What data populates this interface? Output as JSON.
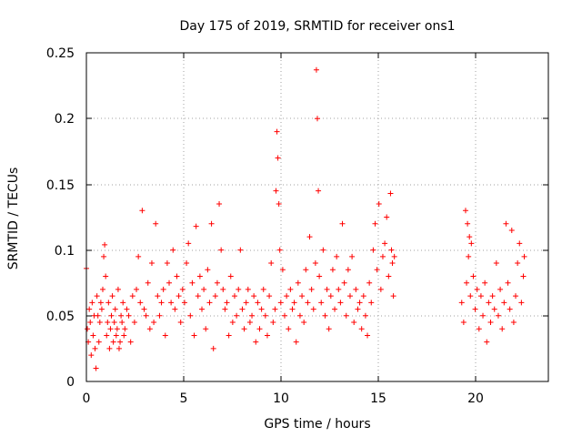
{
  "chart_data": {
    "type": "scatter",
    "title": "Day 175 of 2019, SRMTID for receiver ons1",
    "xlabel": "GPS time / hours",
    "ylabel": "SRMTID / TECUs",
    "xlim": [
      0,
      24
    ],
    "ylim": [
      0,
      0.25
    ],
    "xticks": [
      0,
      5,
      10,
      15,
      20
    ],
    "yticks": [
      0,
      0.05,
      0.1,
      0.15,
      0.2,
      0.25
    ],
    "ytick_labels": [
      "0",
      "0.05",
      "0.1",
      "0.15",
      "0.2",
      "0.25"
    ],
    "grid": true,
    "marker": "+",
    "marker_color": "#ff0000",
    "series": [
      {
        "name": "SRMTID",
        "color": "#ff0000",
        "points": [
          [
            0.0,
            0.086
          ],
          [
            0.05,
            0.04
          ],
          [
            0.1,
            0.03
          ],
          [
            0.15,
            0.055
          ],
          [
            0.2,
            0.045
          ],
          [
            0.25,
            0.02
          ],
          [
            0.3,
            0.06
          ],
          [
            0.35,
            0.035
          ],
          [
            0.4,
            0.05
          ],
          [
            0.45,
            0.025
          ],
          [
            0.5,
            0.01
          ],
          [
            0.55,
            0.065
          ],
          [
            0.6,
            0.05
          ],
          [
            0.65,
            0.03
          ],
          [
            0.7,
            0.045
          ],
          [
            0.75,
            0.06
          ],
          [
            0.8,
            0.055
          ],
          [
            0.85,
            0.07
          ],
          [
            0.9,
            0.095
          ],
          [
            0.95,
            0.104
          ],
          [
            1.0,
            0.08
          ],
          [
            1.05,
            0.035
          ],
          [
            1.1,
            0.045
          ],
          [
            1.15,
            0.06
          ],
          [
            1.2,
            0.025
          ],
          [
            1.25,
            0.04
          ],
          [
            1.3,
            0.05
          ],
          [
            1.35,
            0.065
          ],
          [
            1.4,
            0.03
          ],
          [
            1.45,
            0.045
          ],
          [
            1.5,
            0.055
          ],
          [
            1.55,
            0.035
          ],
          [
            1.6,
            0.04
          ],
          [
            1.65,
            0.07
          ],
          [
            1.7,
            0.025
          ],
          [
            1.75,
            0.03
          ],
          [
            1.8,
            0.05
          ],
          [
            1.85,
            0.045
          ],
          [
            1.9,
            0.06
          ],
          [
            1.95,
            0.035
          ],
          [
            2.0,
            0.04
          ],
          [
            2.1,
            0.055
          ],
          [
            2.2,
            0.05
          ],
          [
            2.3,
            0.03
          ],
          [
            2.4,
            0.065
          ],
          [
            2.5,
            0.045
          ],
          [
            2.6,
            0.07
          ],
          [
            2.7,
            0.095
          ],
          [
            2.8,
            0.06
          ],
          [
            2.9,
            0.13
          ],
          [
            3.0,
            0.055
          ],
          [
            3.1,
            0.05
          ],
          [
            3.2,
            0.075
          ],
          [
            3.3,
            0.04
          ],
          [
            3.4,
            0.09
          ],
          [
            3.5,
            0.045
          ],
          [
            3.6,
            0.12
          ],
          [
            3.7,
            0.065
          ],
          [
            3.8,
            0.05
          ],
          [
            3.9,
            0.06
          ],
          [
            4.0,
            0.07
          ],
          [
            4.1,
            0.035
          ],
          [
            4.2,
            0.09
          ],
          [
            4.3,
            0.075
          ],
          [
            4.4,
            0.06
          ],
          [
            4.5,
            0.1
          ],
          [
            4.6,
            0.055
          ],
          [
            4.7,
            0.08
          ],
          [
            4.8,
            0.065
          ],
          [
            4.9,
            0.045
          ],
          [
            5.0,
            0.07
          ],
          [
            5.1,
            0.06
          ],
          [
            5.2,
            0.09
          ],
          [
            5.3,
            0.105
          ],
          [
            5.4,
            0.05
          ],
          [
            5.5,
            0.075
          ],
          [
            5.6,
            0.035
          ],
          [
            5.7,
            0.118
          ],
          [
            5.8,
            0.065
          ],
          [
            5.9,
            0.08
          ],
          [
            6.0,
            0.055
          ],
          [
            6.1,
            0.07
          ],
          [
            6.2,
            0.04
          ],
          [
            6.3,
            0.085
          ],
          [
            6.4,
            0.06
          ],
          [
            6.5,
            0.12
          ],
          [
            6.6,
            0.025
          ],
          [
            6.7,
            0.065
          ],
          [
            6.8,
            0.075
          ],
          [
            6.9,
            0.135
          ],
          [
            7.0,
            0.1
          ],
          [
            7.1,
            0.07
          ],
          [
            7.2,
            0.055
          ],
          [
            7.3,
            0.06
          ],
          [
            7.4,
            0.035
          ],
          [
            7.5,
            0.08
          ],
          [
            7.6,
            0.045
          ],
          [
            7.7,
            0.065
          ],
          [
            7.8,
            0.05
          ],
          [
            7.9,
            0.07
          ],
          [
            8.0,
            0.1
          ],
          [
            8.1,
            0.055
          ],
          [
            8.2,
            0.04
          ],
          [
            8.3,
            0.06
          ],
          [
            8.4,
            0.07
          ],
          [
            8.5,
            0.045
          ],
          [
            8.6,
            0.05
          ],
          [
            8.7,
            0.065
          ],
          [
            8.8,
            0.03
          ],
          [
            8.9,
            0.06
          ],
          [
            9.0,
            0.04
          ],
          [
            9.1,
            0.055
          ],
          [
            9.2,
            0.07
          ],
          [
            9.3,
            0.05
          ],
          [
            9.4,
            0.035
          ],
          [
            9.5,
            0.065
          ],
          [
            9.6,
            0.09
          ],
          [
            9.7,
            0.045
          ],
          [
            9.8,
            0.055
          ],
          [
            9.85,
            0.145
          ],
          [
            9.9,
            0.19
          ],
          [
            9.95,
            0.17
          ],
          [
            10.0,
            0.135
          ],
          [
            10.05,
            0.1
          ],
          [
            10.1,
            0.06
          ],
          [
            10.2,
            0.085
          ],
          [
            10.3,
            0.05
          ],
          [
            10.4,
            0.065
          ],
          [
            10.5,
            0.04
          ],
          [
            10.6,
            0.07
          ],
          [
            10.7,
            0.055
          ],
          [
            10.8,
            0.06
          ],
          [
            10.9,
            0.03
          ],
          [
            11.0,
            0.075
          ],
          [
            11.1,
            0.05
          ],
          [
            11.2,
            0.065
          ],
          [
            11.3,
            0.045
          ],
          [
            11.4,
            0.085
          ],
          [
            11.5,
            0.06
          ],
          [
            11.6,
            0.11
          ],
          [
            11.7,
            0.07
          ],
          [
            11.8,
            0.055
          ],
          [
            11.9,
            0.09
          ],
          [
            11.95,
            0.237
          ],
          [
            12.0,
            0.2
          ],
          [
            12.05,
            0.145
          ],
          [
            12.1,
            0.08
          ],
          [
            12.2,
            0.06
          ],
          [
            12.3,
            0.1
          ],
          [
            12.4,
            0.05
          ],
          [
            12.5,
            0.07
          ],
          [
            12.6,
            0.04
          ],
          [
            12.7,
            0.065
          ],
          [
            12.8,
            0.085
          ],
          [
            12.9,
            0.055
          ],
          [
            13.0,
            0.095
          ],
          [
            13.1,
            0.07
          ],
          [
            13.2,
            0.06
          ],
          [
            13.3,
            0.12
          ],
          [
            13.4,
            0.075
          ],
          [
            13.5,
            0.05
          ],
          [
            13.6,
            0.085
          ],
          [
            13.7,
            0.065
          ],
          [
            13.8,
            0.095
          ],
          [
            13.9,
            0.045
          ],
          [
            14.0,
            0.07
          ],
          [
            14.1,
            0.055
          ],
          [
            14.2,
            0.06
          ],
          [
            14.3,
            0.04
          ],
          [
            14.4,
            0.065
          ],
          [
            14.5,
            0.05
          ],
          [
            14.6,
            0.035
          ],
          [
            14.7,
            0.075
          ],
          [
            14.8,
            0.06
          ],
          [
            14.9,
            0.1
          ],
          [
            15.0,
            0.12
          ],
          [
            15.1,
            0.085
          ],
          [
            15.2,
            0.135
          ],
          [
            15.3,
            0.07
          ],
          [
            15.4,
            0.095
          ],
          [
            15.5,
            0.105
          ],
          [
            15.6,
            0.125
          ],
          [
            15.7,
            0.08
          ],
          [
            15.8,
            0.143
          ],
          [
            15.85,
            0.1
          ],
          [
            15.9,
            0.09
          ],
          [
            15.95,
            0.065
          ],
          [
            16.0,
            0.095
          ],
          [
            19.5,
            0.06
          ],
          [
            19.6,
            0.045
          ],
          [
            19.7,
            0.13
          ],
          [
            19.75,
            0.075
          ],
          [
            19.8,
            0.12
          ],
          [
            19.85,
            0.095
          ],
          [
            19.9,
            0.11
          ],
          [
            19.95,
            0.065
          ],
          [
            20.0,
            0.105
          ],
          [
            20.1,
            0.08
          ],
          [
            20.2,
            0.055
          ],
          [
            20.3,
            0.07
          ],
          [
            20.4,
            0.04
          ],
          [
            20.5,
            0.065
          ],
          [
            20.6,
            0.05
          ],
          [
            20.7,
            0.075
          ],
          [
            20.8,
            0.03
          ],
          [
            20.9,
            0.06
          ],
          [
            21.0,
            0.045
          ],
          [
            21.1,
            0.065
          ],
          [
            21.2,
            0.055
          ],
          [
            21.3,
            0.09
          ],
          [
            21.4,
            0.05
          ],
          [
            21.5,
            0.07
          ],
          [
            21.6,
            0.04
          ],
          [
            21.7,
            0.06
          ],
          [
            21.8,
            0.12
          ],
          [
            21.9,
            0.075
          ],
          [
            22.0,
            0.055
          ],
          [
            22.1,
            0.115
          ],
          [
            22.2,
            0.045
          ],
          [
            22.3,
            0.065
          ],
          [
            22.4,
            0.09
          ],
          [
            22.5,
            0.105
          ],
          [
            22.6,
            0.06
          ],
          [
            22.7,
            0.08
          ],
          [
            22.75,
            0.095
          ]
        ]
      }
    ]
  }
}
